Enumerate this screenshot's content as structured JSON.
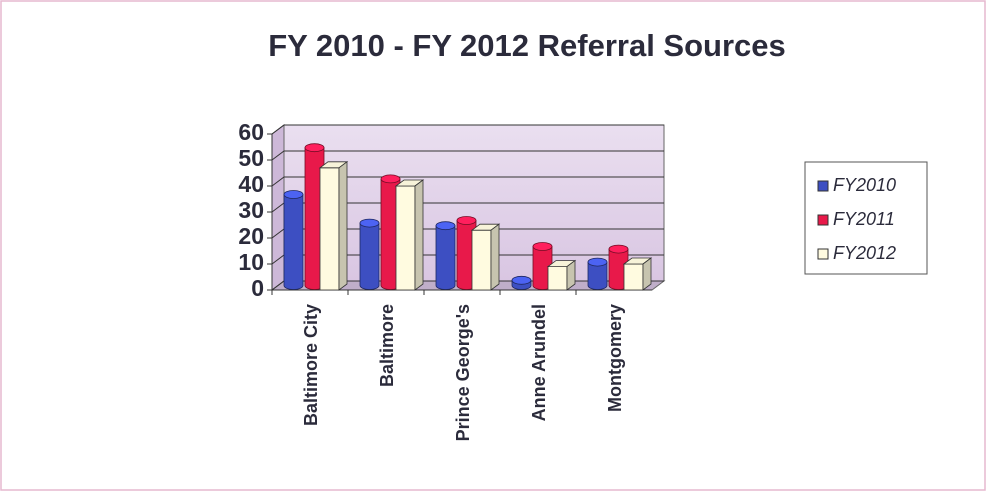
{
  "chart_data": {
    "type": "bar3d",
    "title": "FY 2010 -  FY 2012 Referral Sources",
    "categories": [
      "Baltimore City",
      "Baltimore",
      "Prince George's",
      "Anne Arundel",
      "Montgomery"
    ],
    "series": [
      {
        "name": "FY2010",
        "color": "#3d4fc2",
        "values": [
          35,
          24,
          23,
          2,
          9
        ]
      },
      {
        "name": "FY2011",
        "color": "#e8194a",
        "values": [
          53,
          41,
          25,
          15,
          14
        ]
      },
      {
        "name": "FY2012",
        "color": "#fffbe0",
        "values": [
          47,
          40,
          23,
          9,
          10
        ]
      }
    ],
    "ylim": [
      0,
      60
    ],
    "yticks": [
      0,
      10,
      20,
      30,
      40,
      50,
      60
    ],
    "grid": true,
    "legend": "right"
  }
}
